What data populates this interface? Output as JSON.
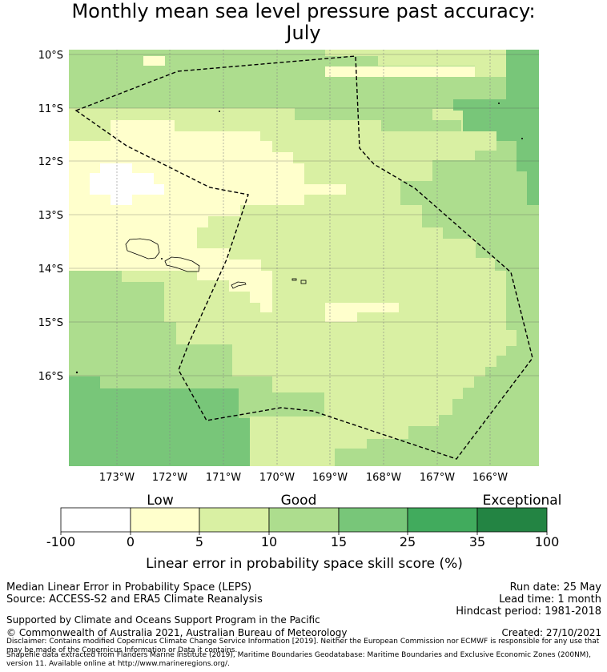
{
  "title": {
    "line1": "Monthly mean sea level pressure past accuracy:",
    "line2": "July"
  },
  "map": {
    "lat_labels": [
      "10°S",
      "11°S",
      "12°S",
      "13°S",
      "14°S",
      "15°S",
      "16°S"
    ],
    "lon_labels": [
      "173°W",
      "172°W",
      "171°W",
      "170°W",
      "169°W",
      "168°W",
      "167°W",
      "166°W"
    ],
    "colors": {
      "white": "#ffffff",
      "band0_5": "#ffffcc",
      "band5_10": "#d9f0a3",
      "band10_15": "#addd8e",
      "band15_25": "#78c679",
      "band25_35": "#41ab5d",
      "band35_100": "#238443"
    }
  },
  "colorbar": {
    "category_labels": [
      "Low",
      "Good",
      "Exceptional"
    ],
    "tick_labels": [
      "-100",
      "0",
      "5",
      "10",
      "15",
      "25",
      "35",
      "100"
    ],
    "axis_label": "Linear error in probability space skill score (%)",
    "colors": [
      "#ffffff",
      "#ffffcc",
      "#d9f0a3",
      "#addd8e",
      "#78c679",
      "#41ab5d",
      "#238443"
    ]
  },
  "footer": {
    "method": "Median Linear Error in Probability Space (LEPS)",
    "source": "Source: ACCESS-S2 and ERA5 Climate Reanalysis",
    "run_date": "Run date: 25 May",
    "lead_time": "Lead time: 1 month",
    "hindcast": "Hindcast period: 1981-2018",
    "supported": "Supported by Climate and Oceans Support Program in the Pacific",
    "copyright": "© Commonwealth of Australia 2021, Australian Bureau of Meteorology",
    "created": "Created: 27/10/2021",
    "disclaimer": "Disclaimer: Contains modified Copernicus Climate Change Service Information [2019]. Neither the European Commission nor ECMWF is responsible for any use that may be made of the Copernicus Information or Data it contains.",
    "shapefile": "Shapefile data extracted from Flanders Marine Institute (2019), Maritime Boundaries Geodatabase: Maritime Boundaries and Exclusive Economic Zones (200NM), version 11. Available online at http://www.marineregions.org/."
  }
}
